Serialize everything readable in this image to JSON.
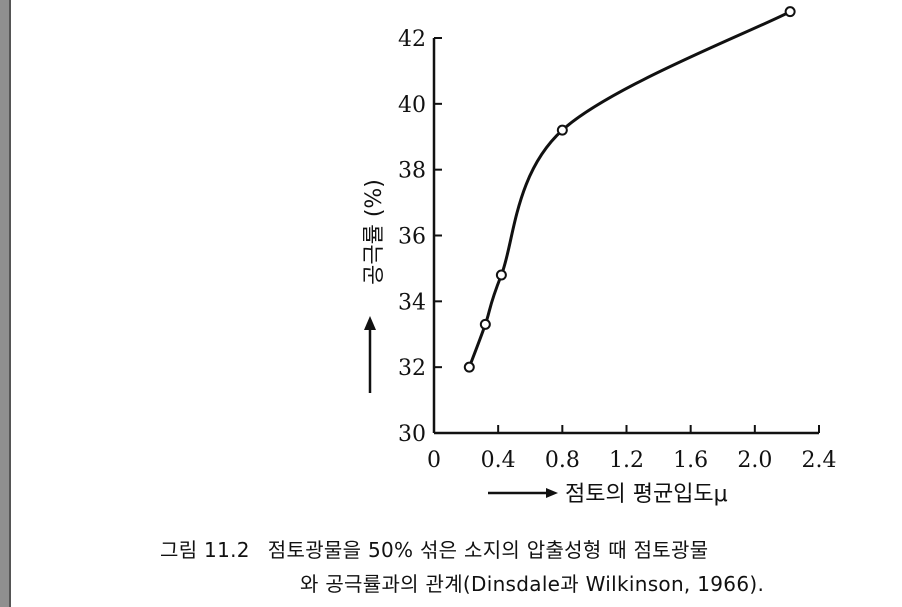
{
  "chart_data": {
    "type": "line",
    "xlabel": "점토의 평균입도μ",
    "ylabel": "공극률 (%)",
    "xlim": [
      0,
      2.4
    ],
    "ylim": [
      30,
      42
    ],
    "x_ticks": [
      "0",
      "0.4",
      "0.8",
      "1.2",
      "1.6",
      "2.0",
      "2.4"
    ],
    "y_ticks": [
      "30",
      "32",
      "34",
      "36",
      "38",
      "40",
      "42"
    ],
    "grid": false,
    "series": [
      {
        "markers": "open-circle",
        "points": [
          {
            "x": 0.22,
            "y": 32.0
          },
          {
            "x": 0.32,
            "y": 33.3
          },
          {
            "x": 0.42,
            "y": 34.8
          },
          {
            "x": 0.8,
            "y": 39.2
          },
          {
            "x": 2.22,
            "y": 42.8
          }
        ]
      }
    ]
  },
  "caption": {
    "figure_number": "그림 11.2",
    "line1": "점토광물을 50% 섞은 소지의 압출성형 때 점토광물",
    "line2": "와 공극률과의 관계(Dinsdale과 Wilkinson, 1966)."
  }
}
